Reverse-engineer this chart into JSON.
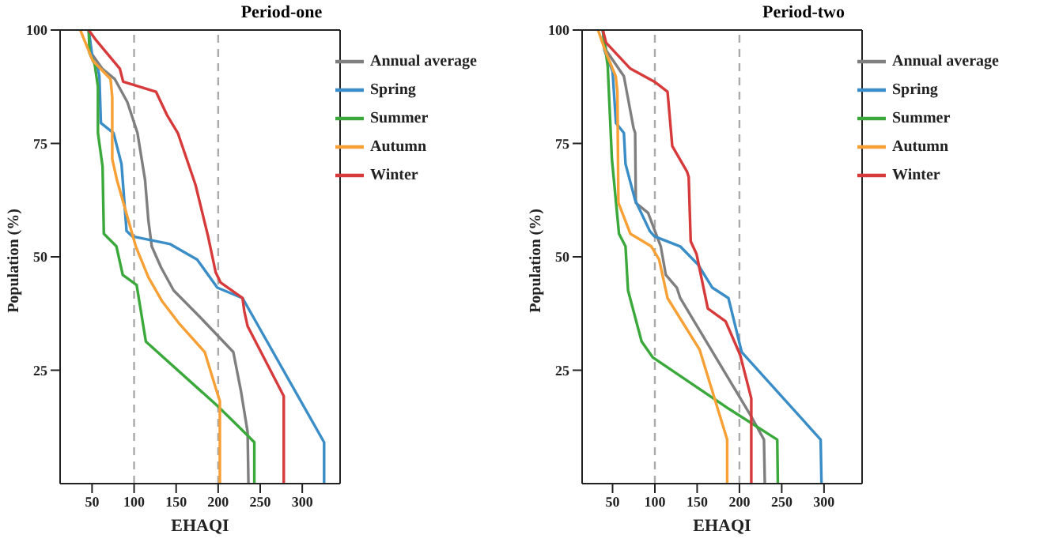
{
  "chart_data": [
    {
      "type": "line",
      "title": "Period-one",
      "xlabel": "EHAQI",
      "ylabel": "Population (%)",
      "xlim": [
        12,
        345
      ],
      "ylim": [
        0,
        100
      ],
      "xticks": [
        50,
        100,
        150,
        200,
        250,
        300
      ],
      "yticks": [
        25,
        50,
        75,
        100
      ],
      "legend": "top right",
      "line_style": "solid",
      "ref_lines": [
        {
          "axis": "x",
          "value": 100,
          "color": "#aaaaaa",
          "line_style": "dashed"
        },
        {
          "axis": "x",
          "value": 200,
          "color": "#aaaaaa",
          "line_style": "dashed"
        }
      ],
      "series": [
        {
          "name": "Annual average",
          "color": "#7f7f7f",
          "x": [
            46,
            49,
            62,
            77,
            92,
            104,
            113,
            117,
            121,
            132,
            147,
            180,
            218,
            227,
            235,
            236
          ],
          "values": [
            100,
            94.9,
            91.5,
            89.2,
            84.1,
            77.3,
            67,
            58,
            52.3,
            47.7,
            42.6,
            36.4,
            29,
            20.5,
            11.4,
            0
          ]
        },
        {
          "name": "Spring",
          "color": "#3a8dc6",
          "x": [
            46,
            51,
            57,
            58.7,
            60.5,
            75.5,
            85,
            91,
            98,
            143,
            175,
            199,
            229,
            326,
            326
          ],
          "values": [
            100,
            93.2,
            91.5,
            89.8,
            79.5,
            77.3,
            70.5,
            55.7,
            54.5,
            52.8,
            49.4,
            43.2,
            40.9,
            9.1,
            0
          ]
        },
        {
          "name": "Summer",
          "color": "#3aa83a",
          "x": [
            46,
            47,
            53,
            57,
            57,
            62.5,
            64,
            79,
            86.5,
            103,
            114,
            200,
            234,
            243,
            243
          ],
          "values": [
            100,
            94.9,
            92.6,
            87.5,
            77.3,
            69.9,
            55.1,
            52.3,
            46,
            43.8,
            31.3,
            17,
            10.8,
            9.1,
            0
          ]
        },
        {
          "name": "Autumn",
          "color": "#f7a035",
          "x": [
            36,
            51,
            72,
            74,
            74,
            79.5,
            102,
            117,
            133,
            154,
            184,
            198,
            202,
            202
          ],
          "values": [
            100,
            93.2,
            89.2,
            85.2,
            71.6,
            67,
            52.3,
            45.5,
            40.3,
            35.2,
            29,
            20.5,
            18.2,
            0
          ]
        },
        {
          "name": "Winter",
          "color": "#d63a3a",
          "x": [
            46,
            55,
            83,
            87,
            126,
            139,
            152,
            173,
            188,
            197,
            203,
            229,
            231,
            235,
            278,
            278
          ],
          "values": [
            100,
            97.7,
            91.5,
            88.6,
            86.4,
            81.3,
            77.3,
            65.9,
            54.5,
            46.6,
            44.3,
            40.9,
            38.1,
            34.7,
            19.3,
            0
          ]
        }
      ]
    },
    {
      "type": "line",
      "title": "Period-two",
      "xlabel": "EHAQI",
      "ylabel": "Population (%)",
      "xlim": [
        14,
        345
      ],
      "ylim": [
        0,
        100
      ],
      "xticks": [
        50,
        100,
        150,
        200,
        250,
        300
      ],
      "yticks": [
        25,
        50,
        75,
        100
      ],
      "legend": "top right",
      "line_style": "solid",
      "ref_lines": [
        {
          "axis": "x",
          "value": 100,
          "color": "#aaaaaa",
          "line_style": "dashed"
        },
        {
          "axis": "x",
          "value": 200,
          "color": "#aaaaaa",
          "line_style": "dashed"
        }
      ],
      "series": [
        {
          "name": "Annual average",
          "color": "#7f7f7f",
          "x": [
            38.5,
            42.4,
            63.4,
            74.8,
            76.7,
            77.5,
            92,
            107,
            113,
            126,
            130,
            214,
            229,
            230
          ],
          "values": [
            100,
            95.5,
            89.8,
            78.4,
            77.3,
            61.9,
            59.7,
            52.3,
            46,
            43.2,
            40.9,
            14.8,
            9.7,
            0
          ]
        },
        {
          "name": "Spring",
          "color": "#3a8dc6",
          "x": [
            38.5,
            40.5,
            50,
            54,
            63.4,
            65.3,
            76.7,
            94,
            99.6,
            130,
            151,
            168,
            187,
            202.7,
            296,
            297
          ],
          "values": [
            100,
            95.5,
            90.9,
            79.5,
            77.3,
            70.5,
            62.5,
            55.7,
            54.5,
            52.3,
            48.3,
            43.2,
            40.9,
            29,
            9.7,
            0
          ]
        },
        {
          "name": "Summer",
          "color": "#3aa83a",
          "x": [
            38.5,
            44.3,
            49.2,
            57.6,
            65.3,
            68.3,
            84.4,
            97.7,
            187.4,
            244.7,
            245.4
          ],
          "values": [
            100,
            92,
            71.6,
            55.1,
            52.3,
            42.6,
            31.3,
            27.8,
            16.5,
            9.7,
            0
          ]
        },
        {
          "name": "Autumn",
          "color": "#f7a035",
          "x": [
            32.8,
            42.4,
            53.8,
            55.7,
            56.9,
            71,
            95.8,
            105,
            115,
            153,
            185.5,
            185.5
          ],
          "values": [
            100,
            94.9,
            89.8,
            86.4,
            61.9,
            55.1,
            52.3,
            49.4,
            40.9,
            29.5,
            9.7,
            0
          ]
        },
        {
          "name": "Winter",
          "color": "#d63a3a",
          "x": [
            38.5,
            42.4,
            71,
            99.6,
            115,
            120.6,
            138,
            140,
            142.4,
            149.3,
            162.6,
            183.6,
            200.8,
            214,
            214
          ],
          "values": [
            100,
            97.2,
            91.5,
            88.6,
            86.4,
            74.4,
            68.8,
            67.6,
            53.4,
            50.6,
            38.6,
            35.8,
            28.4,
            18.8,
            0
          ]
        }
      ]
    }
  ]
}
